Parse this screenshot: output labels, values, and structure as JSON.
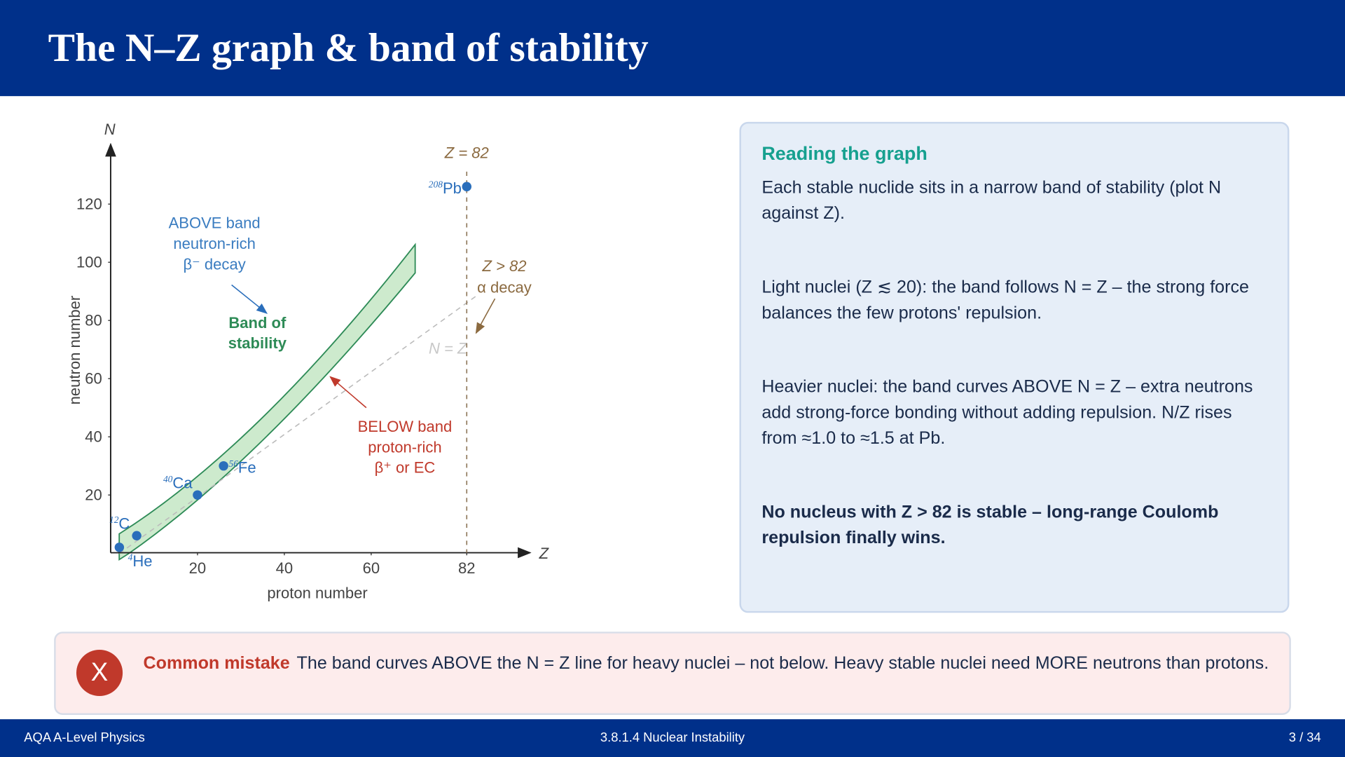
{
  "header": {
    "title": "The N–Z graph & band of stability"
  },
  "chart_data": {
    "type": "scatter",
    "x_axis_symbol": "Z",
    "y_axis_symbol": "N",
    "x_label": "proton number",
    "y_label": "neutron number",
    "xlim": [
      0,
      96
    ],
    "ylim": [
      0,
      140
    ],
    "xticks": [
      20,
      40,
      60,
      82
    ],
    "yticks": [
      20,
      40,
      60,
      80,
      100,
      120
    ],
    "color": "#2a6ebb",
    "x": [
      2,
      6,
      20,
      26,
      82
    ],
    "values": [
      2,
      6,
      20,
      30,
      126
    ],
    "point_labels": [
      "He",
      "C",
      "Ca",
      "Fe",
      "Pb"
    ],
    "point_mass_numbers": [
      "4",
      "12",
      "40",
      "56",
      "208"
    ],
    "reference_line": {
      "x": 82,
      "label": "Z = 82"
    },
    "annotations": {
      "above": [
        "ABOVE band",
        "neutron-rich",
        "β⁻ decay"
      ],
      "band": [
        "Band of",
        "stability"
      ],
      "below": [
        "BELOW band",
        "proton-rich",
        "β⁺ or EC"
      ],
      "alpha": [
        "Z > 82",
        "α decay"
      ],
      "nz": "N = Z"
    }
  },
  "panel": {
    "heading": "Reading the graph",
    "paragraphs": [
      "Each stable nuclide sits in a narrow band of stability (plot N against Z).",
      "Light nuclei (Z ≲ 20): the band follows N = Z – the strong force balances the few protons' repulsion.",
      "Heavier nuclei: the band curves ABOVE N = Z – extra neutrons add strong-force bonding without adding repulsion. N/Z rises from ≈1.0 to ≈1.5 at Pb.",
      "No nucleus with Z > 82 is stable – long-range Coulomb repulsion finally wins."
    ]
  },
  "callout": {
    "icon": "X",
    "label": "Common mistake",
    "text": "The band curves ABOVE the N = Z line for heavy nuclei – not below. Heavy stable nuclei need MORE neutrons than protons."
  },
  "footer": {
    "left": "AQA A-Level Physics",
    "center": "3.8.1.4  Nuclear Instability",
    "right": "3 / 34"
  }
}
